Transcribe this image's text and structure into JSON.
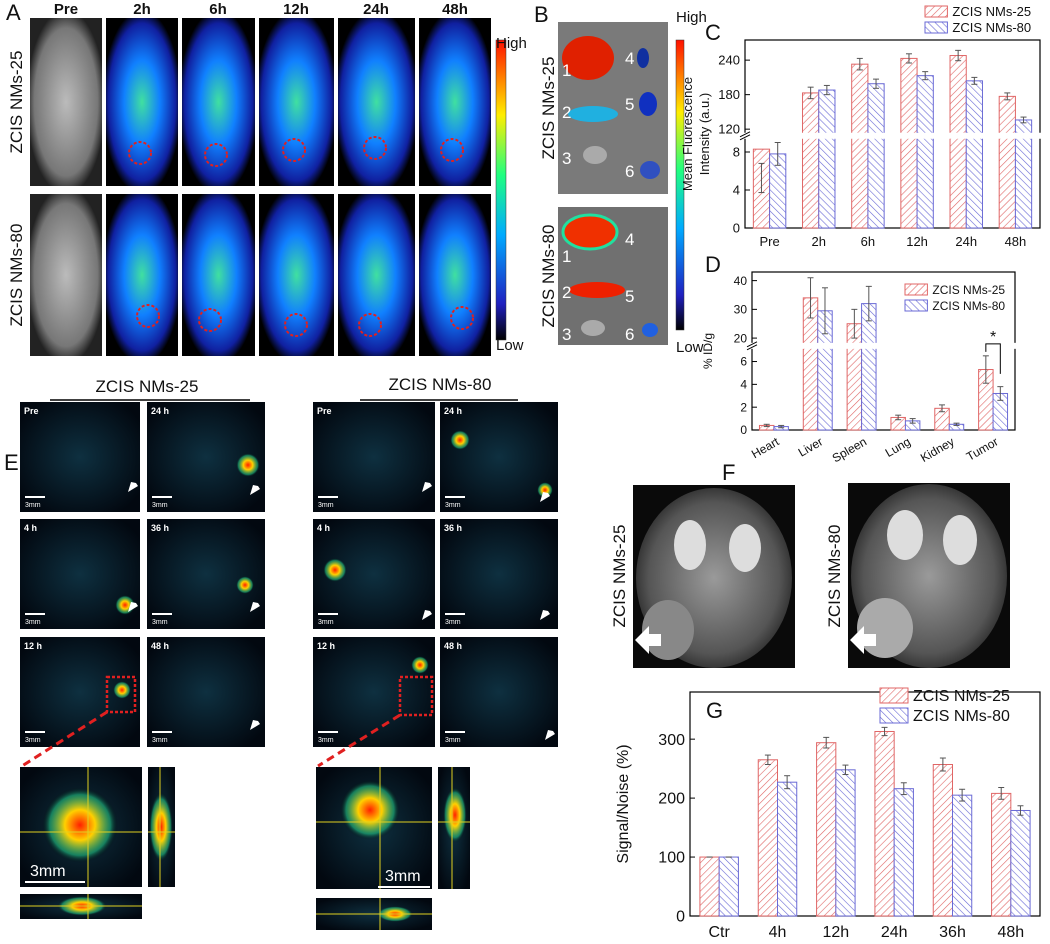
{
  "panel_labels": [
    "A",
    "B",
    "C",
    "D",
    "E",
    "F",
    "G"
  ],
  "panel_a": {
    "timepoints": [
      "Pre",
      "2h",
      "6h",
      "12h",
      "24h",
      "48h"
    ],
    "rows": [
      "ZCIS NMs-25",
      "ZCIS NMs-80"
    ],
    "scale_high": "High",
    "scale_low": "Low"
  },
  "panel_b": {
    "rows": [
      "ZCIS NMs-25",
      "ZCIS NMs-80"
    ],
    "organ_numbers": [
      "1",
      "2",
      "3",
      "4",
      "5",
      "6"
    ],
    "scale_high": "High",
    "scale_low": "Low"
  },
  "panel_e": {
    "groups": [
      "ZCIS NMs-25",
      "ZCIS NMs-80"
    ],
    "tiles": [
      [
        "Pre",
        "24 h"
      ],
      [
        "4 h",
        "36 h"
      ],
      [
        "12 h",
        "48 h"
      ]
    ],
    "scale_bar": "3mm"
  },
  "panel_f": {
    "images": [
      "ZCIS NMs-25",
      "ZCIS NMs-80"
    ]
  },
  "chart_data": [
    {
      "type": "bar",
      "ylabel": [
        "Mean Fluorescence",
        "Intensity (a.u.)"
      ],
      "categories": [
        "Pre",
        "2h",
        "6h",
        "12h",
        "24h",
        "48h"
      ],
      "series": [
        {
          "name": "ZCIS NMs-25",
          "color": "#e06666",
          "values": [
            8.3,
            183,
            233,
            243,
            248,
            177
          ],
          "errors": [
            1.5,
            10,
            10,
            8,
            9,
            6
          ]
        },
        {
          "name": "ZCIS NMs-80",
          "color": "#6a6ad6",
          "values": [
            7.8,
            188,
            199,
            213,
            204,
            136
          ],
          "errors": [
            1.2,
            8,
            8,
            7,
            6,
            5
          ]
        }
      ],
      "ylim_segments": [
        [
          0,
          9.5
        ],
        [
          112,
          275
        ]
      ],
      "yticks": [
        0,
        4,
        8,
        120,
        180,
        240
      ],
      "legend": "upper right outside"
    },
    {
      "type": "bar",
      "ylabel": "% ID/g",
      "categories": [
        "Heart",
        "Liver",
        "Spleen",
        "Lung",
        "Kidney",
        "Tumor"
      ],
      "series": [
        {
          "name": "ZCIS NMs-25",
          "color": "#e06666",
          "values": [
            0.4,
            34,
            25,
            1.1,
            1.9,
            5.3
          ],
          "errors": [
            0.1,
            7,
            5,
            0.2,
            0.3,
            1.2
          ]
        },
        {
          "name": "ZCIS NMs-80",
          "color": "#6a6ad6",
          "values": [
            0.3,
            29.5,
            32,
            0.8,
            0.5,
            3.2
          ],
          "errors": [
            0.1,
            8,
            6,
            0.2,
            0.1,
            0.6
          ]
        }
      ],
      "ylim_segments": [
        [
          0,
          7.2
        ],
        [
          18,
          43
        ]
      ],
      "yticks": [
        0,
        2,
        4,
        6,
        20,
        30,
        40
      ],
      "xlabel_rotation": -30,
      "legend": "upper right",
      "annotation": "*"
    },
    {
      "type": "bar",
      "ylabel": "Signal/Noise (%)",
      "categories": [
        "Ctr",
        "4h",
        "12h",
        "24h",
        "36h",
        "48h"
      ],
      "series": [
        {
          "name": "ZCIS NMs-25",
          "color": "#e06666",
          "values": [
            100,
            265,
            294,
            313,
            257,
            208
          ],
          "errors": [
            0,
            8,
            9,
            7,
            11,
            10
          ]
        },
        {
          "name": "ZCIS NMs-80",
          "color": "#6a6ad6",
          "values": [
            100,
            227,
            248,
            216,
            205,
            179
          ],
          "errors": [
            0,
            11,
            8,
            10,
            10,
            8
          ]
        }
      ],
      "ylim": [
        0,
        380
      ],
      "yticks": [
        0,
        100,
        200,
        300
      ],
      "legend": "upper right"
    }
  ]
}
